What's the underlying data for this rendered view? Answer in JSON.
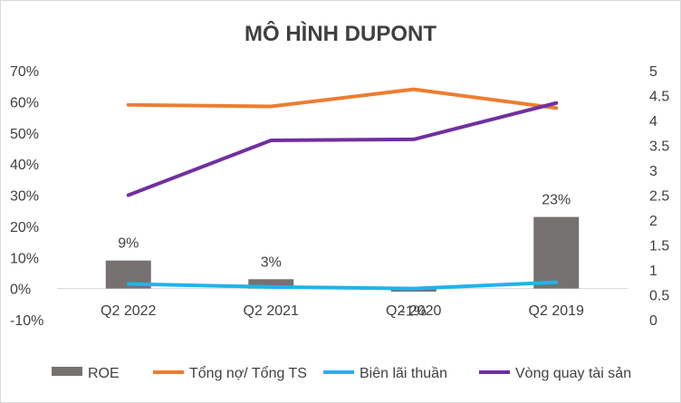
{
  "chart_data": {
    "type": "bar+line",
    "title": "MÔ HÌNH DUPONT",
    "categories": [
      "Q2 2022",
      "Q2 2021",
      "Q2 2020",
      "Q2 2019"
    ],
    "y_left": {
      "min": -0.1,
      "max": 0.7,
      "step": 0.1,
      "ticks": [
        "-10%",
        "0%",
        "10%",
        "20%",
        "30%",
        "40%",
        "50%",
        "60%",
        "70%"
      ]
    },
    "y_right": {
      "min": 0,
      "max": 5,
      "step": 0.5,
      "ticks": [
        "0",
        "0.5",
        "1",
        "1.5",
        "2",
        "2.5",
        "3",
        "3.5",
        "4",
        "4.5",
        "5"
      ]
    },
    "grid": false,
    "legend_position": "bottom",
    "series": [
      {
        "name": "ROE",
        "kind": "bar",
        "axis": "left",
        "color": "#767171",
        "values": [
          0.09,
          0.03,
          -0.01,
          0.23
        ],
        "labels": [
          "9%",
          "3%",
          "-1%",
          "23%"
        ]
      },
      {
        "name": "Tổng nợ/ Tổng TS",
        "kind": "line",
        "axis": "left",
        "color": "#ED7D31",
        "values": [
          0.59,
          0.585,
          0.64,
          0.58
        ]
      },
      {
        "name": "Biên lãi thuần",
        "kind": "line",
        "axis": "left",
        "color": "#1FB4E9",
        "values": [
          0.015,
          0.005,
          0.0,
          0.02
        ]
      },
      {
        "name": "Vòng quay tài sản",
        "kind": "line",
        "axis": "right",
        "color": "#7030A0",
        "values": [
          2.5,
          3.6,
          3.62,
          4.35
        ]
      }
    ]
  }
}
